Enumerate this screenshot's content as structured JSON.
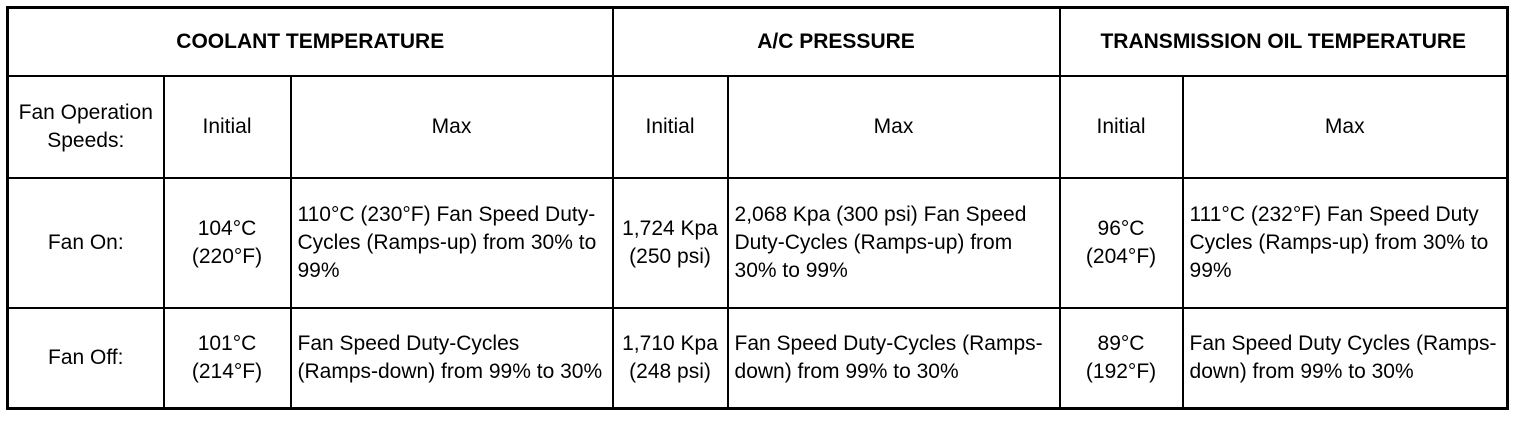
{
  "table": {
    "groups": [
      "COOLANT TEMPERATURE",
      "A/C PRESSURE",
      "TRANSMISSION OIL TEMPERATURE"
    ],
    "subheaders": {
      "row_label": "Fan Operation Speeds:",
      "coolant_initial": "Initial",
      "coolant_max": "Max",
      "ac_initial": "Initial",
      "ac_max": "Max",
      "trans_initial": "Initial",
      "trans_max": "Max"
    },
    "rows": [
      {
        "label": "Fan On:",
        "coolant_initial": "104°C (220°F)",
        "coolant_max": "110°C (230°F) Fan Speed Duty-Cycles (Ramps-up) from 30% to 99%",
        "ac_initial": "1,724 Kpa (250 psi)",
        "ac_max": "2,068 Kpa (300 psi) Fan Speed Duty-Cycles (Ramps-up) from 30% to 99%",
        "trans_initial": "96°C (204°F)",
        "trans_max": "111°C (232°F) Fan Speed Duty Cycles (Ramps-up) from 30% to 99%"
      },
      {
        "label": "Fan Off:",
        "coolant_initial": "101°C (214°F)",
        "coolant_max": "Fan Speed Duty-Cycles (Ramps-down) from 99% to 30%",
        "ac_initial": "1,710 Kpa (248 psi)",
        "ac_max": "Fan Speed Duty-Cycles (Ramps-down) from 99% to 30%",
        "trans_initial": "89°C (192°F)",
        "trans_max": "Fan Speed Duty Cycles (Ramps-down) from 99% to 30%"
      }
    ]
  }
}
